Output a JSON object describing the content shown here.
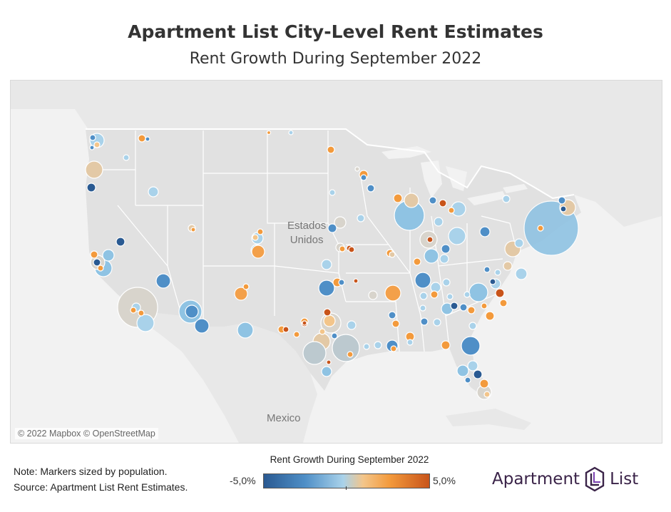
{
  "header": {
    "title": "Apartment List City-Level Rent Estimates",
    "subtitle": "Rent Growth During September 2022"
  },
  "map": {
    "labels": {
      "us_line1": "Estados",
      "us_line2": "Unidos",
      "mexico": "Mexico"
    },
    "attribution": "© 2022 Mapbox © OpenStreetMap",
    "colors": {
      "water": "#f2f2f2",
      "land": "#e6e6e6",
      "us_land": "#dddddd",
      "border": "#ffffff"
    }
  },
  "legend": {
    "title": "Rent Growth During September 2022",
    "min_label": "-5,0%",
    "max_label": "5,0%",
    "colors": [
      "#2a5a92",
      "#4f8fc7",
      "#a9d2ea",
      "#f3c58a",
      "#f39a3c",
      "#c8541a"
    ]
  },
  "footer": {
    "note": "Note: Markers sized by population.",
    "source": "Source: Apartment List Rent Estimates."
  },
  "logo": {
    "part1": "Apartment",
    "part2": "List",
    "icon": "apartment-list-logo-icon"
  }
}
